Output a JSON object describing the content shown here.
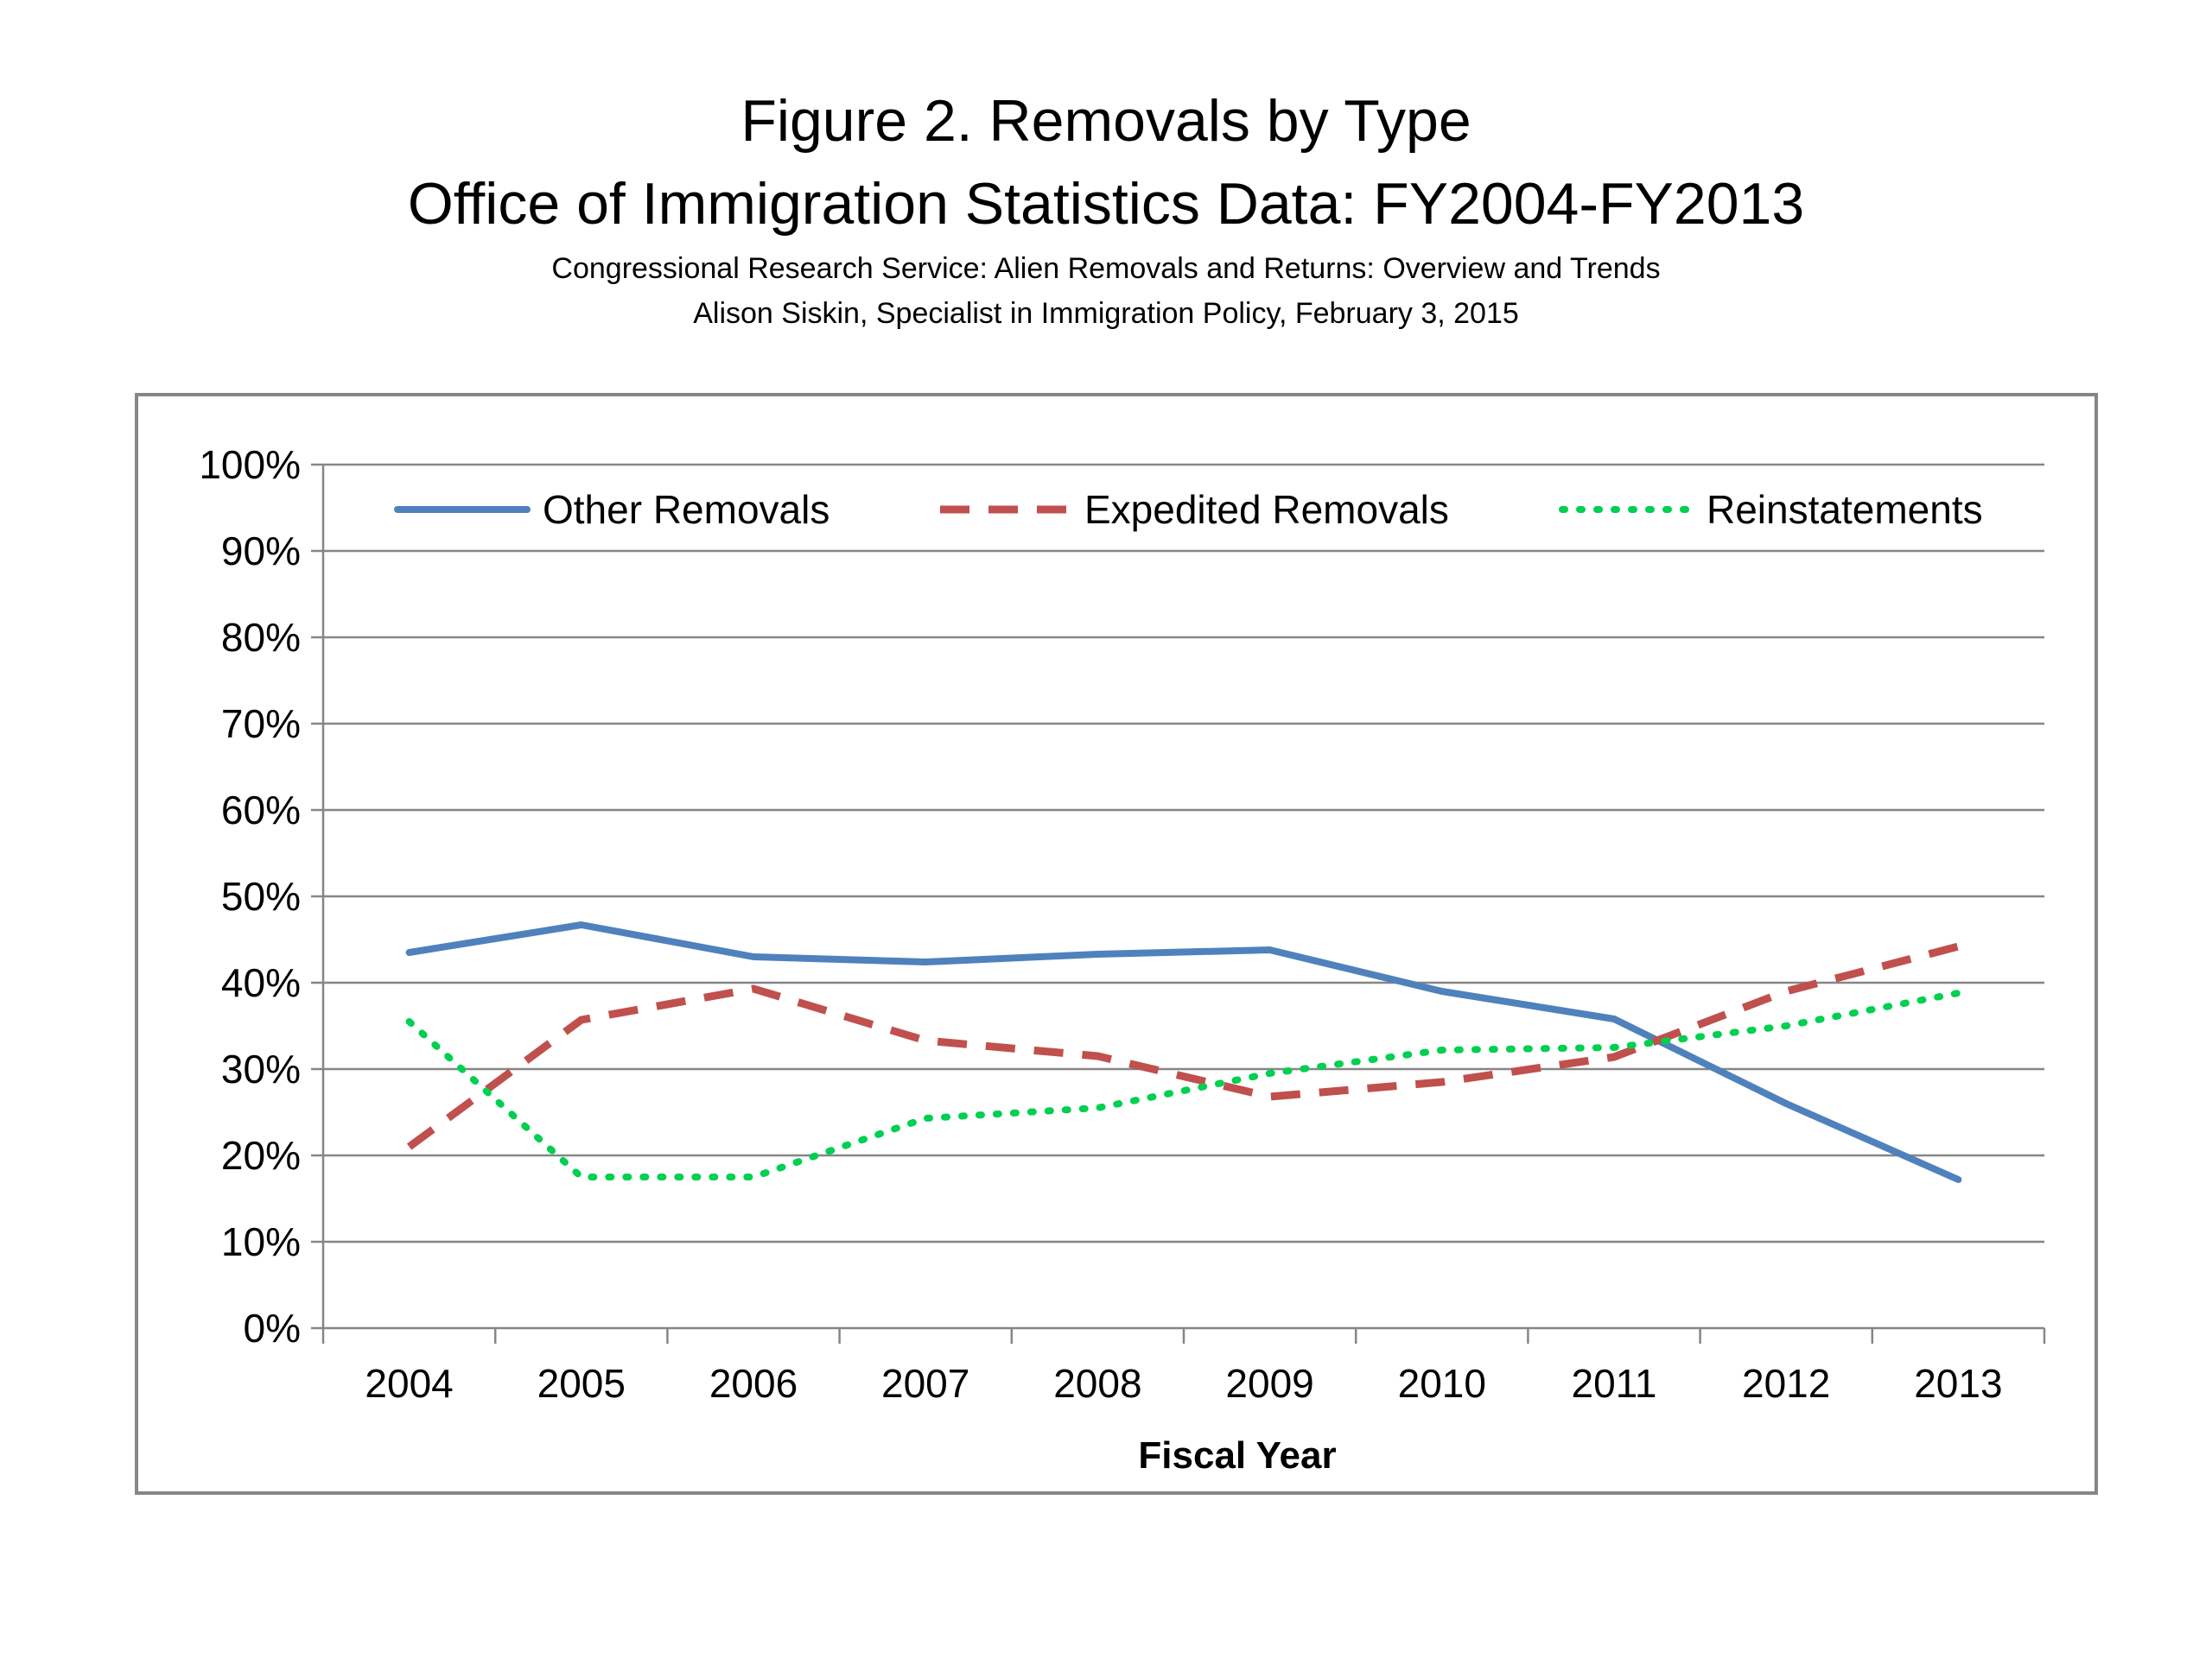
{
  "header": {
    "title_line1": "Figure 2. Removals by Type",
    "title_line2": "Office of Immigration Statistics Data: FY2004-FY2013",
    "subtitle_line1": "Congressional Research Service: Alien Removals and Returns: Overview and Trends",
    "subtitle_line2": "Alison Siskin, Specialist in Immigration Policy, February 3, 2015"
  },
  "colors": {
    "other_removals": "#4F81BD",
    "expedited_removals": "#C0504D",
    "reinstatements": "#00D050",
    "gridline": "#868686",
    "frame": "#868686"
  },
  "chart_data": {
    "type": "line",
    "title": "Figure 2. Removals by Type",
    "xlabel": "Fiscal Year",
    "ylabel": "",
    "categories": [
      "2004",
      "2005",
      "2006",
      "2007",
      "2008",
      "2009",
      "2010",
      "2011",
      "2012",
      "2013"
    ],
    "ylim": [
      0,
      100
    ],
    "yticks": [
      "0%",
      "10%",
      "20%",
      "30%",
      "40%",
      "50%",
      "60%",
      "70%",
      "80%",
      "90%",
      "100%"
    ],
    "grid": true,
    "legend_position": "top",
    "series": [
      {
        "name": "Other Removals",
        "style": "solid",
        "values": [
          43.5,
          46.7,
          43,
          42.4,
          43.3,
          43.8,
          39,
          35.8,
          26,
          17.2
        ]
      },
      {
        "name": "Expedited Removals",
        "style": "dashed",
        "values": [
          21,
          35.7,
          39.3,
          33.3,
          31.5,
          26.8,
          28.5,
          31.4,
          39,
          44.2
        ]
      },
      {
        "name": "Reinstatements",
        "style": "dotted",
        "values": [
          35.5,
          17.5,
          17.5,
          24.3,
          25.5,
          29.5,
          32.2,
          32.5,
          35,
          38.8
        ]
      }
    ]
  }
}
